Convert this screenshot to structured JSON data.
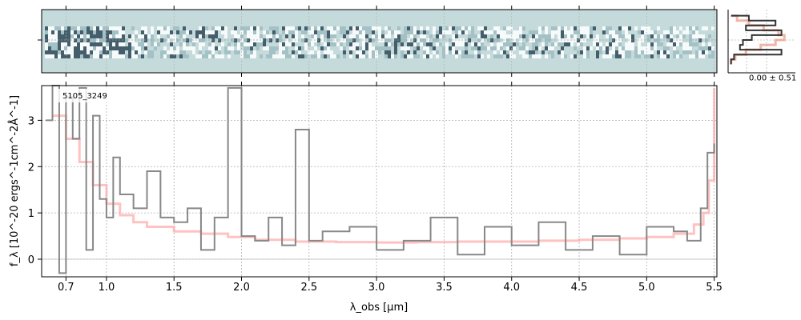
{
  "chart_data": [
    {
      "type": "heatmap",
      "panel": "2d-spectrum",
      "colormap": [
        "#2f4858",
        "#9fbcc2",
        "#ffffff"
      ],
      "background": "#c4dadb",
      "grid": true
    },
    {
      "type": "line",
      "panel": "spatial-profile",
      "annotation": "0.00 ± 0.51",
      "series": [
        {
          "role": "profile",
          "color": "#333333",
          "y": [
            -2.5,
            -2.0,
            -1.5,
            -1.0,
            -0.5,
            0.0,
            0.5,
            1.0,
            1.5,
            2.0,
            2.5
          ],
          "x": [
            0.05,
            0.35,
            0.8,
            0.3,
            0.9,
            0.4,
            0.25,
            0.2,
            0.9,
            0.1,
            0.05
          ]
        },
        {
          "role": "model",
          "color": "#e7866a",
          "y": [
            -2.5,
            -2.0,
            -1.5,
            -1.0,
            -0.5,
            0.0,
            0.5,
            1.0,
            1.5,
            2.0,
            2.5
          ],
          "x": [
            0.05,
            0.15,
            0.35,
            0.6,
            0.85,
            0.95,
            0.8,
            0.55,
            0.3,
            0.12,
            0.05
          ]
        }
      ]
    },
    {
      "type": "line",
      "panel": "1d-spectrum",
      "annotation": "5105_3249",
      "xlabel": "λ_obs [μm]",
      "ylabel": "f_λ [10^-20 ergs^-1cm^-2Å^-1]",
      "xlim": [
        0.52,
        5.52
      ],
      "ylim": [
        -0.38,
        3.75
      ],
      "xticks": [
        0.7,
        1.0,
        1.5,
        2.0,
        2.5,
        3.0,
        3.5,
        4.0,
        4.5,
        5.0,
        5.5
      ],
      "xtick_labels": [
        "0.7",
        "1.0",
        "1.5",
        "2.0",
        "2.5",
        "3.0",
        "3.5",
        "4.0",
        "4.5",
        "5.0",
        "5.5"
      ],
      "yticks": [
        0,
        1,
        2,
        3
      ],
      "ytick_labels": [
        "0",
        "1",
        "2",
        "3"
      ],
      "grid": true,
      "series": [
        {
          "role": "data",
          "color": "#888888",
          "x": [
            0.55,
            0.6,
            0.65,
            0.7,
            0.75,
            0.8,
            0.85,
            0.9,
            0.95,
            1.0,
            1.05,
            1.1,
            1.2,
            1.3,
            1.4,
            1.5,
            1.6,
            1.7,
            1.8,
            1.9,
            2.0,
            2.1,
            2.2,
            2.3,
            2.4,
            2.5,
            2.6,
            2.8,
            3.0,
            3.2,
            3.4,
            3.6,
            3.8,
            4.0,
            4.2,
            4.4,
            4.6,
            4.8,
            5.0,
            5.2,
            5.3,
            5.4,
            5.45,
            5.5
          ],
          "y": [
            3.0,
            3.8,
            -0.3,
            3.5,
            2.6,
            3.7,
            0.2,
            3.1,
            1.3,
            0.9,
            2.2,
            1.4,
            1.1,
            1.9,
            0.9,
            0.8,
            1.1,
            0.2,
            0.9,
            3.7,
            0.5,
            0.4,
            0.9,
            0.3,
            2.8,
            0.4,
            0.6,
            0.7,
            0.2,
            0.4,
            0.9,
            0.1,
            0.7,
            0.3,
            0.8,
            0.2,
            0.5,
            0.1,
            0.7,
            0.6,
            0.4,
            1.1,
            2.3,
            2.5
          ]
        },
        {
          "role": "model",
          "color": "#ff9999",
          "x": [
            0.6,
            0.7,
            0.8,
            0.9,
            1.0,
            1.1,
            1.2,
            1.3,
            1.5,
            1.7,
            1.9,
            2.1,
            2.4,
            2.7,
            3.0,
            3.3,
            3.6,
            3.9,
            4.2,
            4.5,
            4.8,
            5.0,
            5.2,
            5.35,
            5.42,
            5.46,
            5.5
          ],
          "y": [
            3.1,
            2.6,
            2.1,
            1.6,
            1.2,
            0.95,
            0.8,
            0.7,
            0.6,
            0.55,
            0.48,
            0.42,
            0.38,
            0.37,
            0.36,
            0.37,
            0.38,
            0.38,
            0.4,
            0.42,
            0.45,
            0.48,
            0.55,
            0.75,
            1.0,
            1.7,
            3.7
          ]
        }
      ]
    }
  ]
}
